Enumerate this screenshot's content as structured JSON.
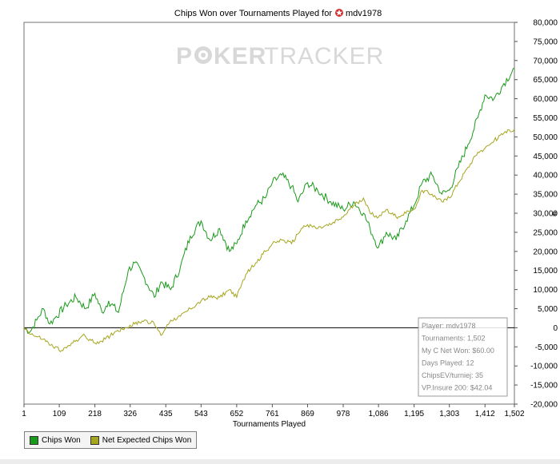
{
  "chart_data": {
    "type": "line",
    "title_prefix": "Chips Won over Tournaments Played for",
    "player_name": "mdv1978",
    "watermark_left": "P",
    "watermark_mid": "KER",
    "watermark_right": "TRACKER",
    "xlabel": "Tournaments Played",
    "ylabel": "#",
    "xlim": [
      1,
      1502
    ],
    "ylim": [
      -20000,
      80000
    ],
    "x_ticks": [
      1,
      109,
      218,
      326,
      435,
      543,
      652,
      761,
      869,
      978,
      1086,
      1195,
      1303,
      1412,
      1502
    ],
    "x_tick_labels": [
      "1",
      "109",
      "218",
      "326",
      "435",
      "543",
      "652",
      "761",
      "869",
      "978",
      "1,086",
      "1,195",
      "1,303",
      "1,412",
      "1,502"
    ],
    "y_ticks": [
      -20000,
      -15000,
      -10000,
      -5000,
      0,
      5000,
      10000,
      15000,
      20000,
      25000,
      30000,
      35000,
      40000,
      45000,
      50000,
      55000,
      60000,
      65000,
      70000,
      75000,
      80000
    ],
    "y_tick_labels": [
      "-20,000",
      "-15,000",
      "-10,000",
      "-5,000",
      "0",
      "5,000",
      "10,000",
      "15,000",
      "20,000",
      "25,000",
      "30,000",
      "35,000",
      "40,000",
      "45,000",
      "50,000",
      "55,000",
      "60,000",
      "65,000",
      "70,000",
      "75,000",
      "80,000"
    ],
    "grid": false,
    "legend_position": "bottom-left",
    "series": [
      {
        "name": "Chips Won",
        "color": "#1a9a1a",
        "x": [
          1,
          20,
          40,
          60,
          80,
          100,
          130,
          160,
          190,
          218,
          240,
          260,
          290,
          320,
          340,
          370,
          400,
          420,
          450,
          480,
          510,
          543,
          570,
          600,
          630,
          652,
          680,
          710,
          740,
          761,
          790,
          820,
          840,
          869,
          900,
          940,
          978,
          1010,
          1040,
          1060,
          1086,
          1110,
          1140,
          1170,
          1195,
          1220,
          1250,
          1280,
          1303,
          1330,
          1360,
          1390,
          1412,
          1440,
          1470,
          1502
        ],
        "y": [
          0,
          -1000,
          2000,
          5000,
          1000,
          3000,
          6000,
          8000,
          5000,
          9000,
          4000,
          7000,
          4000,
          15000,
          17000,
          13000,
          8000,
          12000,
          10000,
          16000,
          24000,
          28000,
          23000,
          26000,
          20000,
          22000,
          28000,
          32000,
          34000,
          38000,
          40000,
          37000,
          33000,
          38000,
          36000,
          33000,
          31000,
          33000,
          30000,
          26000,
          21000,
          25000,
          23000,
          28000,
          32000,
          38000,
          40000,
          35000,
          36000,
          42000,
          48000,
          55000,
          61000,
          60000,
          64000,
          68000
        ]
      },
      {
        "name": "Net Expected Chips Won",
        "color": "#a5a51e",
        "x": [
          1,
          30,
          60,
          90,
          120,
          150,
          180,
          218,
          250,
          280,
          310,
          340,
          370,
          400,
          420,
          450,
          480,
          510,
          543,
          570,
          600,
          630,
          652,
          680,
          710,
          740,
          761,
          790,
          820,
          850,
          869,
          900,
          940,
          978,
          1010,
          1040,
          1060,
          1086,
          1110,
          1140,
          1170,
          1195,
          1220,
          1250,
          1280,
          1303,
          1330,
          1360,
          1390,
          1412,
          1440,
          1470,
          1502
        ],
        "y": [
          0,
          -2000,
          -3000,
          -5000,
          -6000,
          -4000,
          -2000,
          -4000,
          -3000,
          -1000,
          0,
          1000,
          2000,
          1000,
          -2000,
          2000,
          3000,
          5000,
          7000,
          8000,
          8000,
          10000,
          8000,
          14000,
          17000,
          20000,
          22000,
          23000,
          22000,
          26000,
          27000,
          26000,
          27000,
          29000,
          32000,
          34000,
          30000,
          29000,
          31000,
          29000,
          30000,
          31000,
          36000,
          35000,
          33000,
          34000,
          38000,
          42000,
          46000,
          47000,
          49000,
          51000,
          52000
        ]
      }
    ],
    "info_box": {
      "lines": [
        "Player: mdv1978",
        "Tournaments: 1,502",
        "My C Net Won: $60.00",
        "Days Played: 12",
        "ChipsEV/turniej: 35",
        "VP.Insure 200: $42.04"
      ]
    }
  }
}
